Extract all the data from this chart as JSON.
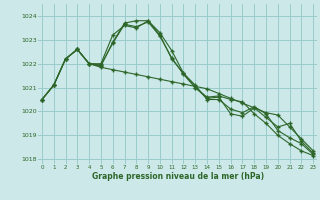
{
  "xlabel": "Graphe pression niveau de la mer (hPa)",
  "background_color": "#cce8e8",
  "grid_color": "#99cccc",
  "line_color": "#2d6629",
  "ylim": [
    1017.8,
    1024.5
  ],
  "xlim": [
    -0.3,
    23.3
  ],
  "yticks": [
    1018,
    1019,
    1020,
    1021,
    1022,
    1023,
    1024
  ],
  "xticks": [
    0,
    1,
    2,
    3,
    4,
    5,
    6,
    7,
    8,
    9,
    10,
    11,
    12,
    13,
    14,
    15,
    16,
    17,
    18,
    19,
    20,
    21,
    22,
    23
  ],
  "series": [
    [
      1020.5,
      1021.1,
      1022.2,
      1022.6,
      1022.0,
      1021.85,
      1021.75,
      1021.65,
      1021.55,
      1021.45,
      1021.35,
      1021.25,
      1021.15,
      1021.05,
      1020.95,
      1020.75,
      1020.55,
      1020.35,
      1020.15,
      1019.95,
      1019.85,
      1019.35,
      1018.85,
      1018.35
    ],
    [
      1020.5,
      1021.1,
      1022.2,
      1022.6,
      1022.0,
      1021.9,
      1022.9,
      1023.7,
      1023.8,
      1023.8,
      1023.2,
      1022.2,
      1021.6,
      1021.0,
      1020.6,
      1020.65,
      1020.5,
      1020.4,
      1019.9,
      1019.5,
      1019.0,
      1018.65,
      1018.35,
      1018.15
    ],
    [
      1020.5,
      1021.1,
      1022.2,
      1022.6,
      1022.0,
      1021.95,
      1022.85,
      1023.65,
      1023.55,
      1023.75,
      1023.15,
      1022.25,
      1021.55,
      1021.0,
      1020.55,
      1020.6,
      1019.9,
      1019.8,
      1020.15,
      1019.75,
      1019.35,
      1019.5,
      1018.75,
      1018.25
    ],
    [
      1020.5,
      1021.1,
      1022.2,
      1022.6,
      1022.0,
      1022.0,
      1023.2,
      1023.6,
      1023.5,
      1023.8,
      1023.3,
      1022.55,
      1021.6,
      1021.1,
      1020.5,
      1020.5,
      1020.1,
      1019.95,
      1020.2,
      1019.9,
      1019.2,
      1018.9,
      1018.65,
      1018.2
    ]
  ]
}
